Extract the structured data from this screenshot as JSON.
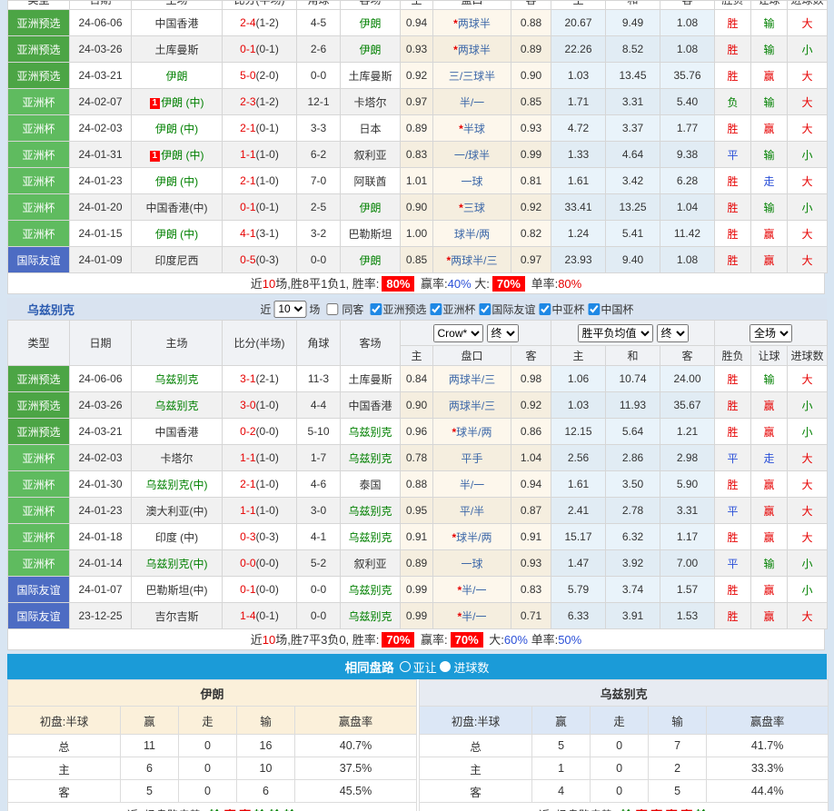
{
  "colors": {
    "type_qualifier": "#4CA545",
    "type_cup": "#5FBB5F",
    "type_friendly": "#4D6CC3",
    "bar_blue": "#1B9BD8",
    "win_red": "#E60000",
    "lose_green": "#008000",
    "draw_blue": "#2B50D8"
  },
  "history_columns": [
    "类型",
    "日期",
    "主场",
    "比分(半场)",
    "角球",
    "客场",
    "主",
    "盘口",
    "客",
    "主",
    "和",
    "客",
    "胜负",
    "让球",
    "进球数"
  ],
  "iran": {
    "rows": [
      {
        "type": "亚洲预选",
        "tc": "q",
        "date": "24-06-06",
        "home": "中国香港",
        "score": "2-4",
        "half": "(1-2)",
        "corner": "4-5",
        "away": "伊朗",
        "ag": true,
        "ha": "0.94",
        "hc": "*两球半",
        "aa": "0.88",
        "eh": "20.67",
        "ed": "9.49",
        "ea": "1.08",
        "r1": "胜",
        "r2": "输",
        "r3": "大"
      },
      {
        "type": "亚洲预选",
        "tc": "q",
        "date": "24-03-26",
        "home": "土库曼斯",
        "score": "0-1",
        "half": "(0-1)",
        "corner": "2-6",
        "away": "伊朗",
        "ag": true,
        "ha": "0.93",
        "hc": "*两球半",
        "aa": "0.89",
        "eh": "22.26",
        "ed": "8.52",
        "ea": "1.08",
        "r1": "胜",
        "r2": "输",
        "r3": "小"
      },
      {
        "type": "亚洲预选",
        "tc": "q",
        "date": "24-03-21",
        "home": "伊朗",
        "hg": true,
        "score": "5-0",
        "half": "(2-0)",
        "corner": "0-0",
        "away": "土库曼斯",
        "ha": "0.92",
        "hc": "三/三球半",
        "aa": "0.90",
        "eh": "1.03",
        "ed": "13.45",
        "ea": "35.76",
        "r1": "胜",
        "r2": "赢",
        "r3": "大"
      },
      {
        "type": "亚洲杯",
        "tc": "c",
        "date": "24-02-07",
        "home": "伊朗 (中)",
        "hg": true,
        "hb": true,
        "score": "2-3",
        "half": "(1-2)",
        "corner": "12-1",
        "away": "卡塔尔",
        "ha": "0.97",
        "hc": "半/一",
        "aa": "0.85",
        "eh": "1.71",
        "ed": "3.31",
        "ea": "5.40",
        "r1": "负",
        "r2": "输",
        "r3": "大"
      },
      {
        "type": "亚洲杯",
        "tc": "c",
        "date": "24-02-03",
        "home": "伊朗 (中)",
        "hg": true,
        "score": "2-1",
        "half": "(0-1)",
        "corner": "3-3",
        "away": "日本",
        "ha": "0.89",
        "hc": "*半球",
        "aa": "0.93",
        "eh": "4.72",
        "ed": "3.37",
        "ea": "1.77",
        "r1": "胜",
        "r2": "赢",
        "r3": "大"
      },
      {
        "type": "亚洲杯",
        "tc": "c",
        "date": "24-01-31",
        "home": "伊朗 (中)",
        "hg": true,
        "hb": true,
        "score": "1-1",
        "half": "(1-0)",
        "corner": "6-2",
        "away": "叙利亚",
        "ha": "0.83",
        "hc": "一/球半",
        "aa": "0.99",
        "eh": "1.33",
        "ed": "4.64",
        "ea": "9.38",
        "r1": "平",
        "r2": "输",
        "r3": "小"
      },
      {
        "type": "亚洲杯",
        "tc": "c",
        "date": "24-01-23",
        "home": "伊朗 (中)",
        "hg": true,
        "score": "2-1",
        "half": "(1-0)",
        "corner": "7-0",
        "away": "阿联酋",
        "ha": "1.01",
        "hc": "一球",
        "aa": "0.81",
        "eh": "1.61",
        "ed": "3.42",
        "ea": "6.28",
        "r1": "胜",
        "r2": "走",
        "r3": "大"
      },
      {
        "type": "亚洲杯",
        "tc": "c",
        "date": "24-01-20",
        "home": "中国香港(中)",
        "score": "0-1",
        "half": "(0-1)",
        "corner": "2-5",
        "away": "伊朗",
        "ag": true,
        "ha": "0.90",
        "hc": "*三球",
        "aa": "0.92",
        "eh": "33.41",
        "ed": "13.25",
        "ea": "1.04",
        "r1": "胜",
        "r2": "输",
        "r3": "小"
      },
      {
        "type": "亚洲杯",
        "tc": "c",
        "date": "24-01-15",
        "home": "伊朗 (中)",
        "hg": true,
        "score": "4-1",
        "half": "(3-1)",
        "corner": "3-2",
        "away": "巴勒斯坦",
        "ha": "1.00",
        "hc": "球半/两",
        "aa": "0.82",
        "eh": "1.24",
        "ed": "5.41",
        "ea": "11.42",
        "r1": "胜",
        "r2": "赢",
        "r3": "大"
      },
      {
        "type": "国际友谊",
        "tc": "f",
        "date": "24-01-09",
        "home": "印度尼西",
        "score": "0-5",
        "half": "(0-3)",
        "corner": "0-0",
        "away": "伊朗",
        "ag": true,
        "ha": "0.85",
        "hc": "*两球半/三",
        "aa": "0.97",
        "eh": "23.93",
        "ed": "9.40",
        "ea": "1.08",
        "r1": "胜",
        "r2": "赢",
        "r3": "大"
      }
    ],
    "summary": [
      {
        "t": "近"
      },
      {
        "t": "10",
        "c": "red"
      },
      {
        "t": "场,胜8平1负1, 胜率:"
      },
      {
        "t": "80%",
        "c": "badge"
      },
      {
        "t": " 赢率:"
      },
      {
        "t": "40%",
        "c": "blue"
      },
      {
        "t": " 大:"
      },
      {
        "t": "70%",
        "c": "badge"
      },
      {
        "t": " 单率:"
      },
      {
        "t": "80%",
        "c": "red"
      }
    ]
  },
  "uzbek": {
    "section_title": "乌兹别克",
    "filter": {
      "near_label": "近",
      "select_value": "10",
      "games_label": "场",
      "same_away_label": "同客",
      "same_away_checked": false,
      "leagues": [
        {
          "label": "亚洲预选",
          "checked": true
        },
        {
          "label": "亚洲杯",
          "checked": true
        },
        {
          "label": "国际友谊",
          "checked": true
        },
        {
          "label": "中亚杯",
          "checked": true
        },
        {
          "label": "中国杯",
          "checked": true
        }
      ]
    },
    "selects": {
      "odds_company": "Crow*",
      "odds_time": "终",
      "avg": "胜平负均值",
      "avg_time": "终",
      "scope": "全场"
    },
    "rows": [
      {
        "type": "亚洲预选",
        "tc": "q",
        "date": "24-06-06",
        "home": "乌兹别克",
        "hg": true,
        "score": "3-1",
        "half": "(2-1)",
        "corner": "11-3",
        "away": "土库曼斯",
        "ha": "0.84",
        "hc": "两球半/三",
        "aa": "0.98",
        "eh": "1.06",
        "ed": "10.74",
        "ea": "24.00",
        "r1": "胜",
        "r2": "输",
        "r3": "大"
      },
      {
        "type": "亚洲预选",
        "tc": "q",
        "date": "24-03-26",
        "home": "乌兹别克",
        "hg": true,
        "score": "3-0",
        "half": "(1-0)",
        "corner": "4-4",
        "away": "中国香港",
        "ha": "0.90",
        "hc": "两球半/三",
        "aa": "0.92",
        "eh": "1.03",
        "ed": "11.93",
        "ea": "35.67",
        "r1": "胜",
        "r2": "赢",
        "r3": "小"
      },
      {
        "type": "亚洲预选",
        "tc": "q",
        "date": "24-03-21",
        "home": "中国香港",
        "score": "0-2",
        "half": "(0-0)",
        "corner": "5-10",
        "away": "乌兹别克",
        "ag": true,
        "ha": "0.96",
        "hc": "*球半/两",
        "aa": "0.86",
        "eh": "12.15",
        "ed": "5.64",
        "ea": "1.21",
        "r1": "胜",
        "r2": "赢",
        "r3": "小"
      },
      {
        "type": "亚洲杯",
        "tc": "c",
        "date": "24-02-03",
        "home": "卡塔尔",
        "score": "1-1",
        "half": "(1-0)",
        "corner": "1-7",
        "away": "乌兹别克",
        "ag": true,
        "ha": "0.78",
        "hc": "平手",
        "aa": "1.04",
        "eh": "2.56",
        "ed": "2.86",
        "ea": "2.98",
        "r1": "平",
        "r2": "走",
        "r3": "大"
      },
      {
        "type": "亚洲杯",
        "tc": "c",
        "date": "24-01-30",
        "home": "乌兹别克(中)",
        "hg": true,
        "score": "2-1",
        "half": "(1-0)",
        "corner": "4-6",
        "away": "泰国",
        "ha": "0.88",
        "hc": "半/一",
        "aa": "0.94",
        "eh": "1.61",
        "ed": "3.50",
        "ea": "5.90",
        "r1": "胜",
        "r2": "赢",
        "r3": "大"
      },
      {
        "type": "亚洲杯",
        "tc": "c",
        "date": "24-01-23",
        "home": "澳大利亚(中)",
        "score": "1-1",
        "half": "(1-0)",
        "corner": "3-0",
        "away": "乌兹别克",
        "ag": true,
        "ha": "0.95",
        "hc": "平/半",
        "aa": "0.87",
        "eh": "2.41",
        "ed": "2.78",
        "ea": "3.31",
        "r1": "平",
        "r2": "赢",
        "r3": "大"
      },
      {
        "type": "亚洲杯",
        "tc": "c",
        "date": "24-01-18",
        "home": "印度 (中)",
        "score": "0-3",
        "half": "(0-3)",
        "corner": "4-1",
        "away": "乌兹别克",
        "ag": true,
        "ha": "0.91",
        "hc": "*球半/两",
        "aa": "0.91",
        "eh": "15.17",
        "ed": "6.32",
        "ea": "1.17",
        "r1": "胜",
        "r2": "赢",
        "r3": "大"
      },
      {
        "type": "亚洲杯",
        "tc": "c",
        "date": "24-01-14",
        "home": "乌兹别克(中)",
        "hg": true,
        "score": "0-0",
        "half": "(0-0)",
        "corner": "5-2",
        "away": "叙利亚",
        "ha": "0.89",
        "hc": "一球",
        "aa": "0.93",
        "eh": "1.47",
        "ed": "3.92",
        "ea": "7.00",
        "r1": "平",
        "r2": "输",
        "r3": "小"
      },
      {
        "type": "国际友谊",
        "tc": "f",
        "date": "24-01-07",
        "home": "巴勒斯坦(中)",
        "score": "0-1",
        "half": "(0-0)",
        "corner": "0-0",
        "away": "乌兹别克",
        "ag": true,
        "ha": "0.99",
        "hc": "*半/一",
        "aa": "0.83",
        "eh": "5.79",
        "ed": "3.74",
        "ea": "1.57",
        "r1": "胜",
        "r2": "赢",
        "r3": "小"
      },
      {
        "type": "国际友谊",
        "tc": "f",
        "date": "23-12-25",
        "home": "吉尔吉斯",
        "score": "1-4",
        "half": "(0-1)",
        "corner": "0-0",
        "away": "乌兹别克",
        "ag": true,
        "ha": "0.99",
        "hc": "*半/一",
        "aa": "0.71",
        "eh": "6.33",
        "ed": "3.91",
        "ea": "1.53",
        "r1": "胜",
        "r2": "赢",
        "r3": "大"
      }
    ],
    "summary": [
      {
        "t": "近"
      },
      {
        "t": "10",
        "c": "red"
      },
      {
        "t": "场,胜7平3负0, 胜率:"
      },
      {
        "t": "70%",
        "c": "badge"
      },
      {
        "t": " 赢率:"
      },
      {
        "t": "70%",
        "c": "badge"
      },
      {
        "t": " 大:"
      },
      {
        "t": "60%",
        "c": "blue"
      },
      {
        "t": " 单率:"
      },
      {
        "t": "50%",
        "c": "blue"
      }
    ]
  },
  "compare": {
    "bar": {
      "title": "相同盘路",
      "options": [
        {
          "label": "亚让",
          "selected": false
        },
        {
          "label": "进球数",
          "selected": true
        }
      ]
    },
    "left": {
      "title": "伊朗",
      "columns": [
        "初盘:半球",
        "赢",
        "走",
        "输",
        "赢盘率"
      ],
      "rows": [
        [
          "总",
          "11",
          "0",
          "16",
          "40.7%"
        ],
        [
          "主",
          "6",
          "0",
          "10",
          "37.5%"
        ],
        [
          "客",
          "5",
          "0",
          "6",
          "45.5%"
        ]
      ],
      "trend_label": [
        {
          "t": "近"
        },
        {
          "t": "6",
          "c": "blue"
        },
        {
          "t": "场盘路走势:"
        }
      ],
      "trend": [
        {
          "t": "输",
          "c": "green"
        },
        {
          "t": "赢",
          "c": "red"
        },
        {
          "t": "赢",
          "c": "red"
        },
        {
          "t": "输",
          "c": "green"
        },
        {
          "t": "输",
          "c": "green"
        },
        {
          "t": "输",
          "c": "green"
        }
      ]
    },
    "right": {
      "title": "乌兹别克",
      "columns": [
        "初盘:半球",
        "赢",
        "走",
        "输",
        "赢盘率"
      ],
      "rows": [
        [
          "总",
          "5",
          "0",
          "7",
          "41.7%"
        ],
        [
          "主",
          "1",
          "0",
          "2",
          "33.3%"
        ],
        [
          "客",
          "4",
          "0",
          "5",
          "44.4%"
        ]
      ],
      "trend_label": [
        {
          "t": "近"
        },
        {
          "t": "6",
          "c": "blue"
        },
        {
          "t": "场盘路走势:"
        }
      ],
      "trend": [
        {
          "t": "输",
          "c": "green"
        },
        {
          "t": "赢",
          "c": "red"
        },
        {
          "t": "赢",
          "c": "red"
        },
        {
          "t": "赢",
          "c": "red"
        },
        {
          "t": "赢",
          "c": "red"
        },
        {
          "t": "输",
          "c": "green"
        }
      ]
    }
  }
}
